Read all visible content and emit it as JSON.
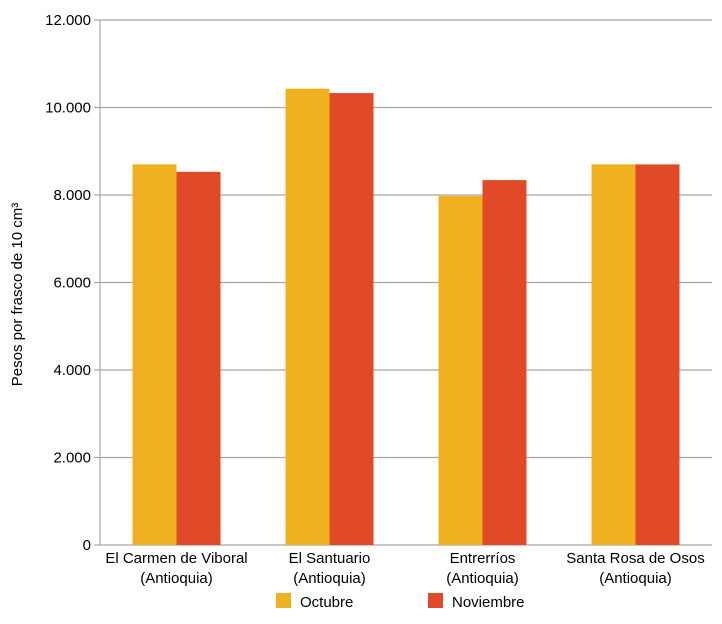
{
  "chart_data": {
    "type": "bar",
    "title": "",
    "xlabel": "",
    "ylabel": "Pesos por frasco de 10 cm³",
    "ylim": [
      0,
      12000
    ],
    "yticks": [
      {
        "value": 0,
        "label": "0"
      },
      {
        "value": 2000,
        "label": "2.000"
      },
      {
        "value": 4000,
        "label": "4.000"
      },
      {
        "value": 6000,
        "label": "6.000"
      },
      {
        "value": 8000,
        "label": "8.000"
      },
      {
        "value": 10000,
        "label": "10.000"
      },
      {
        "value": 12000,
        "label": "12.000"
      }
    ],
    "categories": [
      [
        "El Carmen de Viboral",
        "(Antioquia)"
      ],
      [
        "El Santuario",
        "(Antioquia)"
      ],
      [
        "Entrerríos",
        "(Antioquia)"
      ],
      [
        "Santa Rosa de Osos",
        "(Antioquia)"
      ]
    ],
    "series": [
      {
        "name": "Octubre",
        "color": "#F0B121",
        "values": [
          8700,
          10430,
          7980,
          8700
        ]
      },
      {
        "name": "Noviembre",
        "color": "#E04A28",
        "values": [
          8530,
          10330,
          8340,
          8700
        ]
      }
    ],
    "grid": true,
    "legend": "bottom"
  }
}
